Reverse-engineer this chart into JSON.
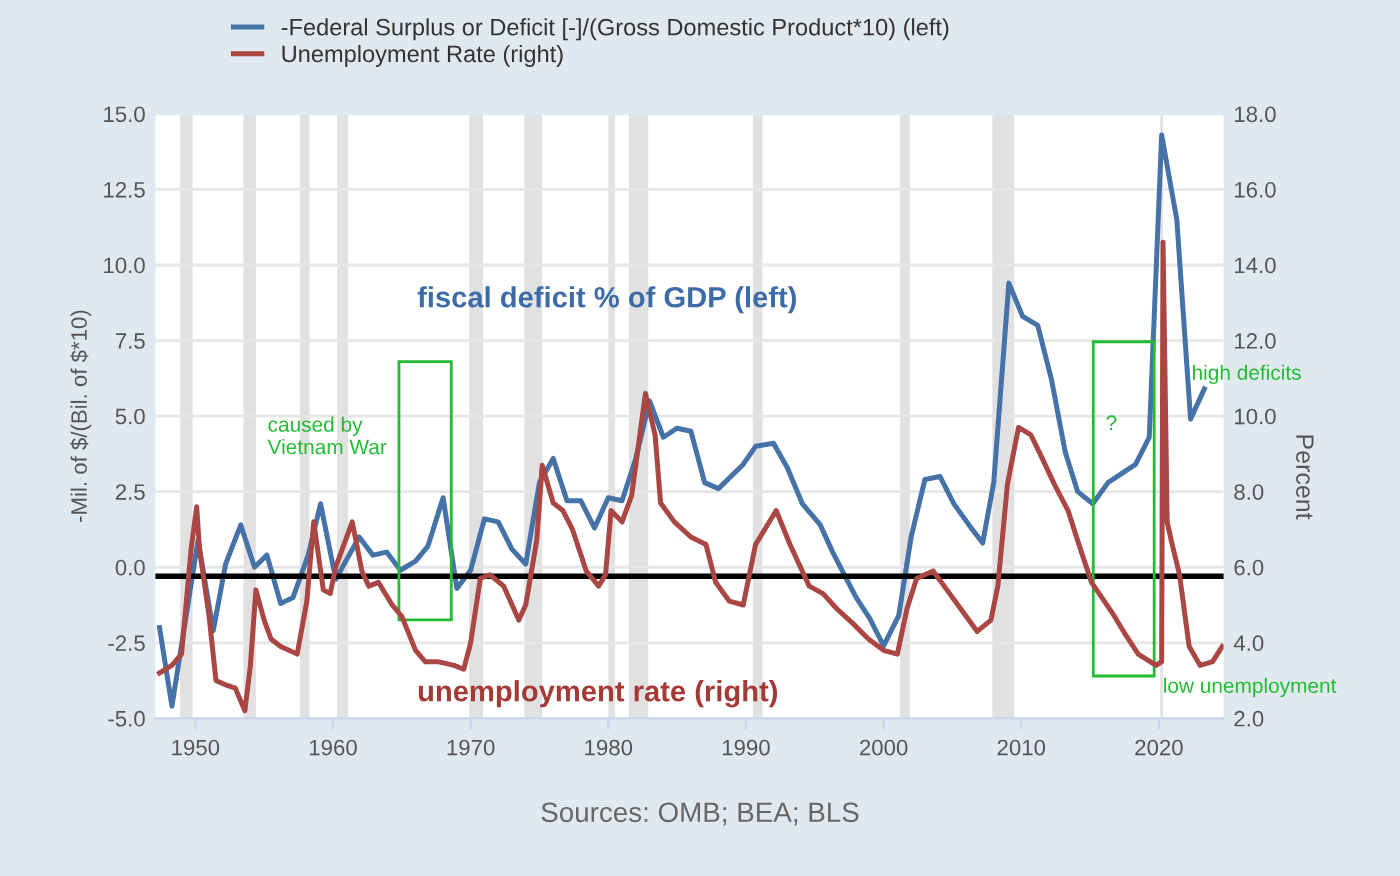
{
  "chart_data": {
    "type": "line",
    "legend": "top left",
    "grid": "y",
    "line_style": "solid",
    "marker": "none",
    "ylabel": "-Mil. of $/(Bil. of $*10)",
    "y2label": "Percent",
    "xlim": [
      1947.1,
      2024.7
    ],
    "xticks": [
      1950,
      1960,
      1970,
      1980,
      1990,
      2000,
      2010,
      2020
    ],
    "ylim": [
      -5,
      15
    ],
    "yticks": [
      {
        "value": -5,
        "label": "-5.0"
      },
      {
        "value": -2.5,
        "label": "-2.5"
      },
      {
        "value": 0,
        "label": "0.0"
      },
      {
        "value": 2.5,
        "label": "2.5"
      },
      {
        "value": 5,
        "label": "5.0"
      },
      {
        "value": 7.5,
        "label": "7.5"
      },
      {
        "value": 10,
        "label": "10.0"
      },
      {
        "value": 12.5,
        "label": "12.5"
      },
      {
        "value": 15,
        "label": "15.0"
      }
    ],
    "y2lim": [
      2,
      18
    ],
    "y2ticks": [
      {
        "value": 2,
        "label": "2.0"
      },
      {
        "value": 4,
        "label": "4.0"
      },
      {
        "value": 6,
        "label": "6.0"
      },
      {
        "value": 8,
        "label": "8.0"
      },
      {
        "value": 10,
        "label": "10.0"
      },
      {
        "value": 12,
        "label": "12.0"
      },
      {
        "value": 14,
        "label": "14.0"
      },
      {
        "value": 16,
        "label": "16.0"
      },
      {
        "value": 18,
        "label": "18.0"
      }
    ],
    "series": [
      {
        "name": "-Federal Surplus or Deficit [-]/(Gross Domestic Product*10) (left)",
        "color": "#4572a7",
        "x": [
          1947.4,
          1948.3,
          1950.2,
          1951.3,
          1952.2,
          1953.3,
          1954.3,
          1955.2,
          1956.2,
          1957.1,
          1958.2,
          1959.1,
          1960.2,
          1961.9,
          1962.9,
          1963.9,
          1964.9,
          1966.0,
          1966.9,
          1968.0,
          1969.0,
          1970.0,
          1971.0,
          1972.0,
          1973.0,
          1974.0,
          1975.0,
          1976.0,
          1977.0,
          1978.0,
          1979.0,
          1980.0,
          1981.0,
          1982.0,
          1983.0,
          1984.0,
          1985.0,
          1986.0,
          1987.0,
          1988.0,
          1989.8,
          1990.7,
          1992.0,
          1993.0,
          1994.1,
          1995.4,
          1996.3,
          1998.0,
          1999.0,
          2000.0,
          2001.1,
          2002.0,
          2003.0,
          2004.1,
          2005.1,
          2006.2,
          2007.2,
          2008.0,
          2009.1,
          2010.1,
          2011.2,
          2012.2,
          2013.2,
          2014.1,
          2015.2,
          2016.3,
          2018.3,
          2019.3,
          2020.2,
          2021.3,
          2022.3,
          2023.3
        ],
        "values": [
          -2.0,
          -4.6,
          0.9,
          -2.1,
          0.1,
          1.4,
          0.0,
          0.4,
          -1.2,
          -1.0,
          0.4,
          2.1,
          -0.4,
          1.0,
          0.4,
          0.5,
          -0.1,
          0.2,
          0.7,
          2.3,
          -0.7,
          -0.1,
          1.6,
          1.5,
          0.6,
          0.1,
          2.8,
          3.6,
          2.2,
          2.2,
          1.3,
          2.3,
          2.2,
          3.6,
          5.5,
          4.3,
          4.6,
          4.5,
          2.8,
          2.6,
          3.4,
          4.0,
          4.1,
          3.3,
          2.1,
          1.4,
          0.5,
          -1.0,
          -1.7,
          -2.6,
          -1.6,
          1.0,
          2.9,
          3.0,
          2.1,
          1.4,
          0.8,
          2.8,
          9.4,
          8.3,
          8.0,
          6.2,
          3.8,
          2.5,
          2.1,
          2.8,
          3.4,
          4.3,
          14.3,
          11.5,
          4.9,
          5.9
        ]
      },
      {
        "name": "Unemployment Rate (right)",
        "color": "#aa4643",
        "axis": "y2",
        "x": [
          1947.4,
          1948.3,
          1949.0,
          1949.7,
          1950.1,
          1950.3,
          1951.0,
          1951.5,
          1952.1,
          1952.9,
          1953.6,
          1954.0,
          1954.4,
          1955.0,
          1955.5,
          1956.2,
          1957.4,
          1958.1,
          1958.6,
          1959.3,
          1959.8,
          1960.2,
          1961.4,
          1962.1,
          1962.6,
          1963.3,
          1964.3,
          1965.0,
          1966.0,
          1966.7,
          1967.6,
          1968.8,
          1969.5,
          1970.0,
          1970.7,
          1971.4,
          1972.4,
          1973.5,
          1974.0,
          1974.8,
          1975.2,
          1976.0,
          1976.7,
          1977.4,
          1978.4,
          1979.3,
          1979.8,
          1980.2,
          1981.0,
          1981.7,
          1982.7,
          1983.4,
          1983.8,
          1984.8,
          1986.0,
          1987.1,
          1987.8,
          1988.8,
          1989.8,
          1990.7,
          1992.2,
          1993.2,
          1994.6,
          1995.6,
          1996.6,
          1997.8,
          1998.9,
          2000.0,
          2001.0,
          2001.7,
          2002.4,
          2003.6,
          2004.4,
          2005.6,
          2006.8,
          2007.8,
          2008.3,
          2009.0,
          2009.8,
          2010.7,
          2011.5,
          2012.4,
          2013.4,
          2014.1,
          2015.1,
          2016.6,
          2017.6,
          2018.5,
          2019.8,
          2020.2,
          2020.3,
          2020.6,
          2020.9,
          2021.5,
          2022.2,
          2023.0,
          2023.9,
          2024.6
        ],
        "values": [
          3.2,
          3.4,
          3.7,
          6.5,
          7.6,
          6.5,
          4.7,
          3.0,
          2.9,
          2.8,
          2.2,
          3.4,
          5.4,
          4.6,
          4.1,
          3.9,
          3.7,
          5.1,
          7.2,
          5.4,
          5.3,
          6.0,
          7.2,
          5.9,
          5.5,
          5.6,
          5.0,
          4.7,
          3.8,
          3.5,
          3.5,
          3.4,
          3.3,
          4.0,
          5.7,
          5.8,
          5.5,
          4.6,
          5.0,
          6.7,
          8.7,
          7.7,
          7.5,
          7.0,
          5.9,
          5.5,
          5.8,
          7.5,
          7.2,
          7.9,
          10.6,
          9.5,
          7.7,
          7.2,
          6.8,
          6.6,
          5.6,
          5.1,
          5.0,
          6.6,
          7.5,
          6.6,
          5.5,
          5.3,
          4.9,
          4.5,
          4.1,
          3.8,
          3.7,
          4.9,
          5.7,
          5.9,
          5.5,
          4.9,
          4.3,
          4.6,
          5.5,
          8.2,
          9.7,
          9.5,
          8.9,
          8.2,
          7.5,
          6.7,
          5.6,
          4.8,
          4.2,
          3.7,
          3.4,
          3.5,
          14.6,
          7.2,
          6.7,
          5.8,
          3.9,
          3.4,
          3.5,
          3.9
        ]
      }
    ],
    "ref_lines": [
      {
        "axis": "y",
        "value": -0.3,
        "color": "#000000"
      }
    ],
    "bands": [
      {
        "axis": "x",
        "from": 1948.9,
        "to": 1949.8,
        "color": "#e1e1e1"
      },
      {
        "axis": "x",
        "from": 1953.5,
        "to": 1954.4,
        "color": "#e1e1e1"
      },
      {
        "axis": "x",
        "from": 1957.6,
        "to": 1958.3,
        "color": "#e1e1e1"
      },
      {
        "axis": "x",
        "from": 1960.3,
        "to": 1961.1,
        "color": "#e1e1e1"
      },
      {
        "axis": "x",
        "from": 1969.9,
        "to": 1970.9,
        "color": "#e1e1e1"
      },
      {
        "axis": "x",
        "from": 1973.9,
        "to": 1975.2,
        "color": "#e1e1e1"
      },
      {
        "axis": "x",
        "from": 1980.0,
        "to": 1980.5,
        "color": "#e1e1e1"
      },
      {
        "axis": "x",
        "from": 1981.5,
        "to": 1982.9,
        "color": "#e1e1e1"
      },
      {
        "axis": "x",
        "from": 1990.5,
        "to": 1991.2,
        "color": "#e1e1e1"
      },
      {
        "axis": "x",
        "from": 2001.2,
        "to": 2001.9,
        "color": "#e1e1e1"
      },
      {
        "axis": "x",
        "from": 2007.9,
        "to": 2009.5,
        "color": "#e1e1e1"
      },
      {
        "axis": "x",
        "from": 2020.1,
        "to": 2020.3,
        "color": "#e1e1e1"
      }
    ],
    "annotations": [
      "fiscal deficit % of GDP (left)",
      "unemployment rate (right)",
      "caused by\nVietnam War",
      "?",
      "high deficits",
      "low unemployment",
      "Sources: OMB; BEA; BLS"
    ]
  }
}
